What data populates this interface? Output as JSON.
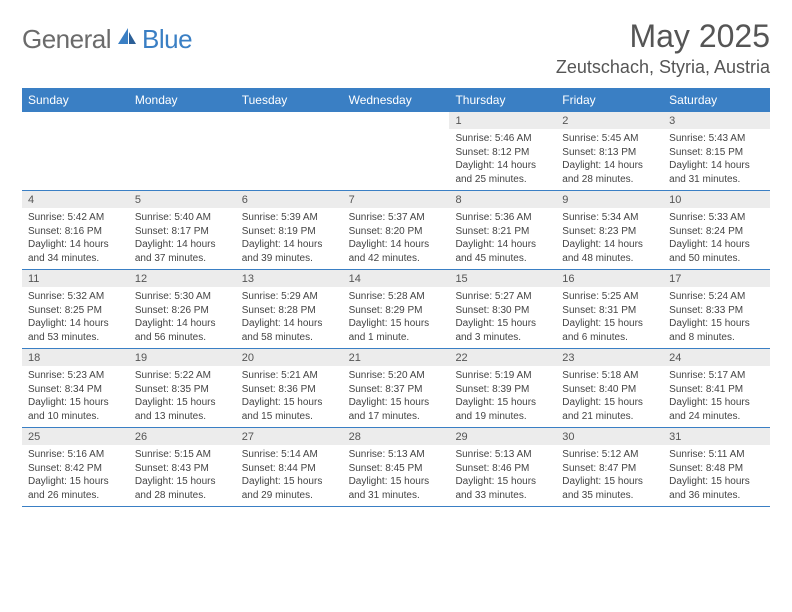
{
  "logo": {
    "general": "General",
    "blue": "Blue"
  },
  "title": "May 2025",
  "location": "Zeutschach, Styria, Austria",
  "colors": {
    "header_bg": "#3a7fc4",
    "header_text": "#ffffff",
    "daynum_bg": "#ececec",
    "text": "#444444",
    "title_text": "#555555",
    "border": "#3a7fc4",
    "background": "#ffffff"
  },
  "day_names": [
    "Sunday",
    "Monday",
    "Tuesday",
    "Wednesday",
    "Thursday",
    "Friday",
    "Saturday"
  ],
  "weeks": [
    [
      {
        "day": "",
        "sunrise": "",
        "sunset": "",
        "daylight": ""
      },
      {
        "day": "",
        "sunrise": "",
        "sunset": "",
        "daylight": ""
      },
      {
        "day": "",
        "sunrise": "",
        "sunset": "",
        "daylight": ""
      },
      {
        "day": "",
        "sunrise": "",
        "sunset": "",
        "daylight": ""
      },
      {
        "day": "1",
        "sunrise": "Sunrise: 5:46 AM",
        "sunset": "Sunset: 8:12 PM",
        "daylight": "Daylight: 14 hours and 25 minutes."
      },
      {
        "day": "2",
        "sunrise": "Sunrise: 5:45 AM",
        "sunset": "Sunset: 8:13 PM",
        "daylight": "Daylight: 14 hours and 28 minutes."
      },
      {
        "day": "3",
        "sunrise": "Sunrise: 5:43 AM",
        "sunset": "Sunset: 8:15 PM",
        "daylight": "Daylight: 14 hours and 31 minutes."
      }
    ],
    [
      {
        "day": "4",
        "sunrise": "Sunrise: 5:42 AM",
        "sunset": "Sunset: 8:16 PM",
        "daylight": "Daylight: 14 hours and 34 minutes."
      },
      {
        "day": "5",
        "sunrise": "Sunrise: 5:40 AM",
        "sunset": "Sunset: 8:17 PM",
        "daylight": "Daylight: 14 hours and 37 minutes."
      },
      {
        "day": "6",
        "sunrise": "Sunrise: 5:39 AM",
        "sunset": "Sunset: 8:19 PM",
        "daylight": "Daylight: 14 hours and 39 minutes."
      },
      {
        "day": "7",
        "sunrise": "Sunrise: 5:37 AM",
        "sunset": "Sunset: 8:20 PM",
        "daylight": "Daylight: 14 hours and 42 minutes."
      },
      {
        "day": "8",
        "sunrise": "Sunrise: 5:36 AM",
        "sunset": "Sunset: 8:21 PM",
        "daylight": "Daylight: 14 hours and 45 minutes."
      },
      {
        "day": "9",
        "sunrise": "Sunrise: 5:34 AM",
        "sunset": "Sunset: 8:23 PM",
        "daylight": "Daylight: 14 hours and 48 minutes."
      },
      {
        "day": "10",
        "sunrise": "Sunrise: 5:33 AM",
        "sunset": "Sunset: 8:24 PM",
        "daylight": "Daylight: 14 hours and 50 minutes."
      }
    ],
    [
      {
        "day": "11",
        "sunrise": "Sunrise: 5:32 AM",
        "sunset": "Sunset: 8:25 PM",
        "daylight": "Daylight: 14 hours and 53 minutes."
      },
      {
        "day": "12",
        "sunrise": "Sunrise: 5:30 AM",
        "sunset": "Sunset: 8:26 PM",
        "daylight": "Daylight: 14 hours and 56 minutes."
      },
      {
        "day": "13",
        "sunrise": "Sunrise: 5:29 AM",
        "sunset": "Sunset: 8:28 PM",
        "daylight": "Daylight: 14 hours and 58 minutes."
      },
      {
        "day": "14",
        "sunrise": "Sunrise: 5:28 AM",
        "sunset": "Sunset: 8:29 PM",
        "daylight": "Daylight: 15 hours and 1 minute."
      },
      {
        "day": "15",
        "sunrise": "Sunrise: 5:27 AM",
        "sunset": "Sunset: 8:30 PM",
        "daylight": "Daylight: 15 hours and 3 minutes."
      },
      {
        "day": "16",
        "sunrise": "Sunrise: 5:25 AM",
        "sunset": "Sunset: 8:31 PM",
        "daylight": "Daylight: 15 hours and 6 minutes."
      },
      {
        "day": "17",
        "sunrise": "Sunrise: 5:24 AM",
        "sunset": "Sunset: 8:33 PM",
        "daylight": "Daylight: 15 hours and 8 minutes."
      }
    ],
    [
      {
        "day": "18",
        "sunrise": "Sunrise: 5:23 AM",
        "sunset": "Sunset: 8:34 PM",
        "daylight": "Daylight: 15 hours and 10 minutes."
      },
      {
        "day": "19",
        "sunrise": "Sunrise: 5:22 AM",
        "sunset": "Sunset: 8:35 PM",
        "daylight": "Daylight: 15 hours and 13 minutes."
      },
      {
        "day": "20",
        "sunrise": "Sunrise: 5:21 AM",
        "sunset": "Sunset: 8:36 PM",
        "daylight": "Daylight: 15 hours and 15 minutes."
      },
      {
        "day": "21",
        "sunrise": "Sunrise: 5:20 AM",
        "sunset": "Sunset: 8:37 PM",
        "daylight": "Daylight: 15 hours and 17 minutes."
      },
      {
        "day": "22",
        "sunrise": "Sunrise: 5:19 AM",
        "sunset": "Sunset: 8:39 PM",
        "daylight": "Daylight: 15 hours and 19 minutes."
      },
      {
        "day": "23",
        "sunrise": "Sunrise: 5:18 AM",
        "sunset": "Sunset: 8:40 PM",
        "daylight": "Daylight: 15 hours and 21 minutes."
      },
      {
        "day": "24",
        "sunrise": "Sunrise: 5:17 AM",
        "sunset": "Sunset: 8:41 PM",
        "daylight": "Daylight: 15 hours and 24 minutes."
      }
    ],
    [
      {
        "day": "25",
        "sunrise": "Sunrise: 5:16 AM",
        "sunset": "Sunset: 8:42 PM",
        "daylight": "Daylight: 15 hours and 26 minutes."
      },
      {
        "day": "26",
        "sunrise": "Sunrise: 5:15 AM",
        "sunset": "Sunset: 8:43 PM",
        "daylight": "Daylight: 15 hours and 28 minutes."
      },
      {
        "day": "27",
        "sunrise": "Sunrise: 5:14 AM",
        "sunset": "Sunset: 8:44 PM",
        "daylight": "Daylight: 15 hours and 29 minutes."
      },
      {
        "day": "28",
        "sunrise": "Sunrise: 5:13 AM",
        "sunset": "Sunset: 8:45 PM",
        "daylight": "Daylight: 15 hours and 31 minutes."
      },
      {
        "day": "29",
        "sunrise": "Sunrise: 5:13 AM",
        "sunset": "Sunset: 8:46 PM",
        "daylight": "Daylight: 15 hours and 33 minutes."
      },
      {
        "day": "30",
        "sunrise": "Sunrise: 5:12 AM",
        "sunset": "Sunset: 8:47 PM",
        "daylight": "Daylight: 15 hours and 35 minutes."
      },
      {
        "day": "31",
        "sunrise": "Sunrise: 5:11 AM",
        "sunset": "Sunset: 8:48 PM",
        "daylight": "Daylight: 15 hours and 36 minutes."
      }
    ]
  ]
}
